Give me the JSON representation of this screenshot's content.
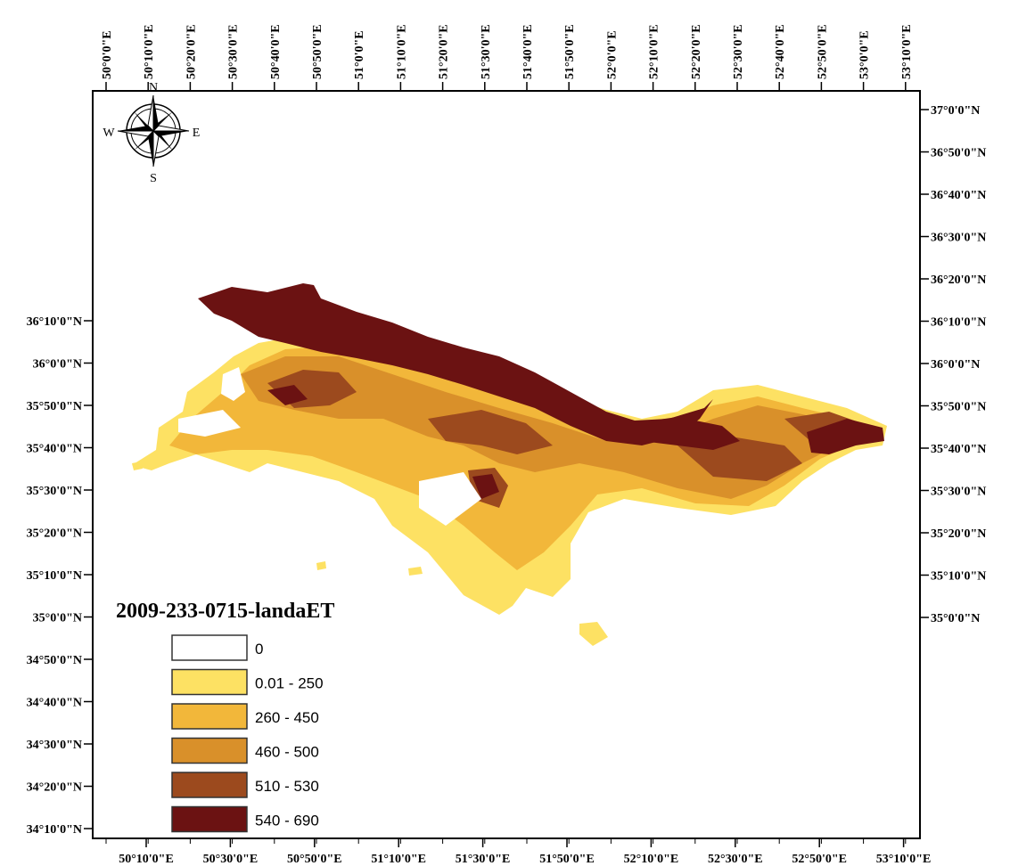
{
  "map": {
    "title": "2009-233-0715-landaET",
    "top_ticks": [
      "50°0'0\"E",
      "50°10'0\"E",
      "50°20'0\"E",
      "50°30'0\"E",
      "50°40'0\"E",
      "50°50'0\"E",
      "51°0'0\"E",
      "51°10'0\"E",
      "51°20'0\"E",
      "51°30'0\"E",
      "51°40'0\"E",
      "51°50'0\"E",
      "52°0'0\"E",
      "52°10'0\"E",
      "52°20'0\"E",
      "52°30'0\"E",
      "52°40'0\"E",
      "52°50'0\"E",
      "53°0'0\"E",
      "53°10'0\"E"
    ],
    "bottom_ticks": [
      "50°10'0\"E",
      "50°30'0\"E",
      "50°50'0\"E",
      "51°10'0\"E",
      "51°30'0\"E",
      "51°50'0\"E",
      "52°10'0\"E",
      "52°30'0\"E",
      "52°50'0\"E",
      "53°10'0\"E"
    ],
    "left_ticks": [
      "36°10'0\"N",
      "36°0'0\"N",
      "35°50'0\"N",
      "35°40'0\"N",
      "35°30'0\"N",
      "35°20'0\"N",
      "35°10'0\"N",
      "35°0'0\"N",
      "34°50'0\"N",
      "34°40'0\"N",
      "34°30'0\"N",
      "34°20'0\"N",
      "34°10'0\"N"
    ],
    "right_ticks": [
      "37°0'0\"N",
      "36°50'0\"N",
      "36°40'0\"N",
      "36°30'0\"N",
      "36°20'0\"N",
      "36°10'0\"N",
      "36°0'0\"N",
      "35°50'0\"N",
      "35°40'0\"N",
      "35°30'0\"N",
      "35°20'0\"N",
      "35°10'0\"N",
      "35°0'0\"N"
    ],
    "compass": {
      "n": "N",
      "s": "S",
      "e": "E",
      "w": "W"
    },
    "legend": [
      {
        "label": "0",
        "color": "#ffffff"
      },
      {
        "label": "0.01 - 250",
        "color": "#fde163"
      },
      {
        "label": "260 - 450",
        "color": "#f2b73a"
      },
      {
        "label": "460 - 500",
        "color": "#d9902a"
      },
      {
        "label": "510 - 530",
        "color": "#9c4a1e"
      },
      {
        "label": "540 - 690",
        "color": "#6b1212"
      }
    ]
  }
}
